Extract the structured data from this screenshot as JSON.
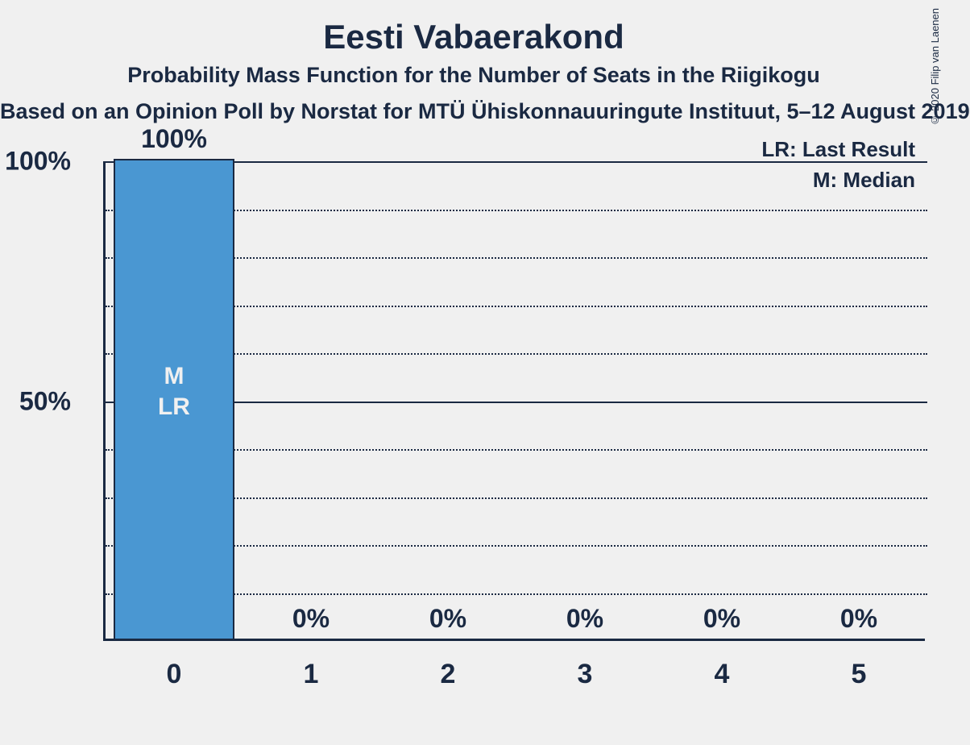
{
  "chart": {
    "title": "Eesti Vabaerakond",
    "subtitle": "Probability Mass Function for the Number of Seats in the Riigikogu",
    "poll_line": "Based on an Opinion Poll by Norstat for MTÜ Ühiskonnauuringute Instituut, 5–12 August 2019",
    "copyright": "© 2020 Filip van Laenen",
    "background_color": "#f0f0f0",
    "text_color": "#1a2942",
    "bar_color": "#4a97d2",
    "bar_border_color": "#1a2942",
    "ylim": [
      0,
      100
    ],
    "y_major_ticks": [
      50,
      100
    ],
    "y_minor_step": 10,
    "y_tick_labels": {
      "100": "100%",
      "50": "50%"
    },
    "legend": {
      "lr": "LR: Last Result",
      "m": "M: Median"
    },
    "categories": [
      0,
      1,
      2,
      3,
      4,
      5
    ],
    "values": [
      100,
      0,
      0,
      0,
      0,
      0
    ],
    "value_labels": [
      "100%",
      "0%",
      "0%",
      "0%",
      "0%",
      "0%"
    ],
    "bar_annotations": {
      "0": [
        "M",
        "LR"
      ]
    },
    "bar_width_ratio": 0.88,
    "title_fontsize": 42,
    "subtitle_fontsize": 27,
    "axis_label_fontsize": 34
  }
}
